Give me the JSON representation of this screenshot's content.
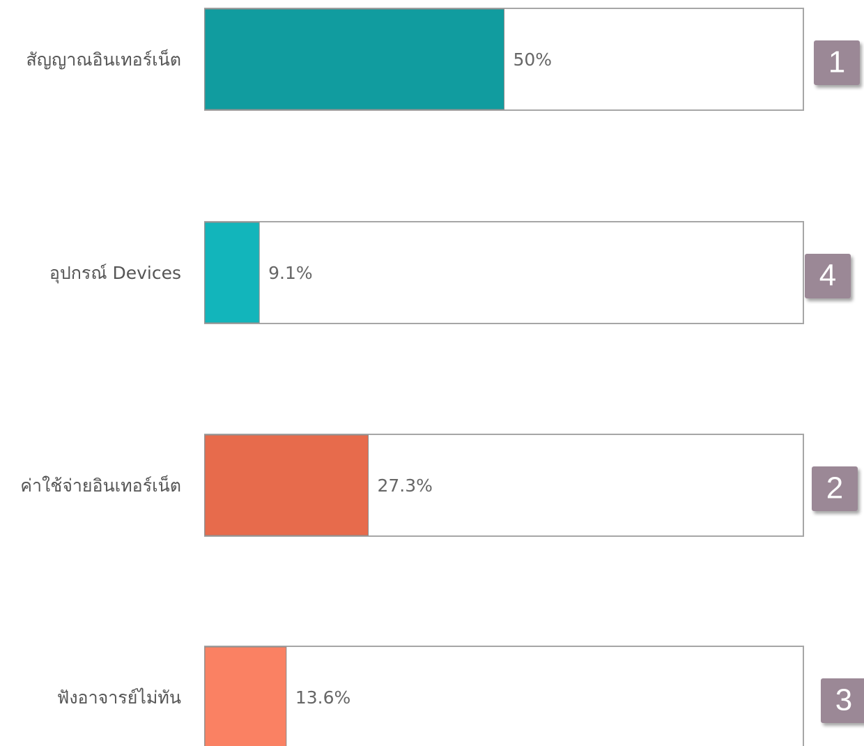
{
  "chart_data": {
    "type": "bar",
    "orientation": "horizontal",
    "categories": [
      "สัญญาณอินเทอร์เน็ต",
      "อุปกรณ์ Devices",
      "ค่าใช้จ่ายอินเทอร์เน็ต",
      "ฟังอาจารย์ไม่ทัน"
    ],
    "values": [
      50,
      9.1,
      27.3,
      13.6
    ],
    "value_labels": [
      "50%",
      "9.1%",
      "27.3%",
      "13.6%"
    ],
    "colors": [
      "#119c9f",
      "#12b5bb",
      "#e76b4c",
      "#fa8163"
    ],
    "ranks": [
      1,
      4,
      2,
      3
    ],
    "xlim": [
      0,
      100
    ]
  }
}
